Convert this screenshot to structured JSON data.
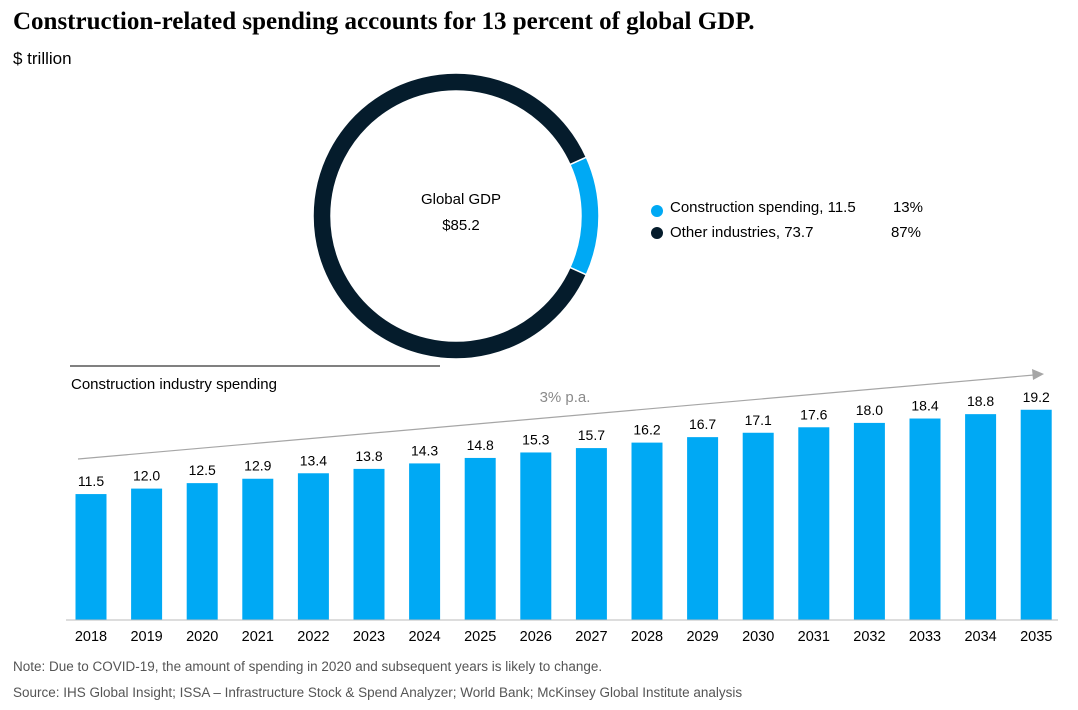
{
  "title": "Construction-related spending accounts for 13 percent of global GDP.",
  "unit": "$ trillion",
  "colors": {
    "construction": "#00A9F4",
    "other": "#051C2C",
    "arrow": "#A6A6A6"
  },
  "chart_data": [
    {
      "type": "pie",
      "title": "Global GDP",
      "center_value": "$85.2",
      "donut": true,
      "slices": [
        {
          "label": "Construction spending, 11.5",
          "value": 11.5,
          "pct": "13%"
        },
        {
          "label": "Other industries, 73.7",
          "value": 73.7,
          "pct": "87%"
        }
      ]
    },
    {
      "type": "bar",
      "title": "Construction industry spending",
      "annotation": "3% p.a.",
      "categories": [
        "2018",
        "2019",
        "2020",
        "2021",
        "2022",
        "2023",
        "2024",
        "2025",
        "2026",
        "2027",
        "2028",
        "2029",
        "2030",
        "2031",
        "2032",
        "2033",
        "2034",
        "2035"
      ],
      "values": [
        11.5,
        12.0,
        12.5,
        12.9,
        13.4,
        13.8,
        14.3,
        14.8,
        15.3,
        15.7,
        16.2,
        16.7,
        17.1,
        17.6,
        18.0,
        18.4,
        18.8,
        19.2
      ],
      "labels": [
        "11.5",
        "12.0",
        "12.5",
        "12.9",
        "13.4",
        "13.8",
        "14.3",
        "14.8",
        "15.3",
        "15.7",
        "16.2",
        "16.7",
        "17.1",
        "17.6",
        "18.0",
        "18.4",
        "18.8",
        "19.2"
      ],
      "ylim": [
        0,
        20
      ]
    }
  ],
  "note": "Note: Due to COVID-19, the amount of spending in 2020 and subsequent years is likely to change.",
  "source": "Source: IHS Global Insight; ISSA – Infrastructure Stock & Spend Analyzer; World Bank; McKinsey Global Institute analysis"
}
